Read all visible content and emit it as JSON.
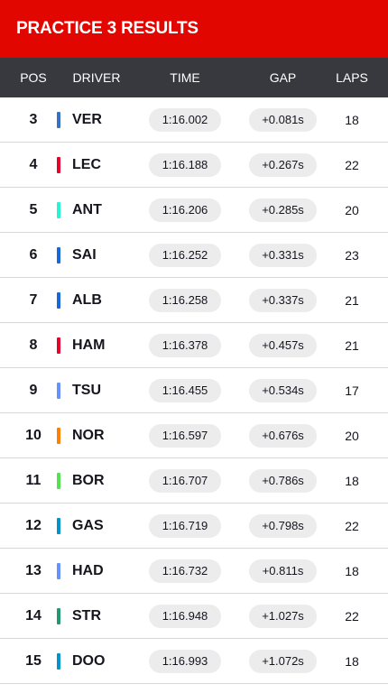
{
  "header": {
    "title": "PRACTICE 3 RESULTS"
  },
  "columns": {
    "pos": "POS",
    "driver": "DRIVER",
    "time": "TIME",
    "gap": "GAP",
    "laps": "LAPS"
  },
  "rows": [
    {
      "pos": "3",
      "driver": "VER",
      "time": "1:16.002",
      "gap": "+0.081s",
      "laps": "18",
      "team_color": "#3671c6"
    },
    {
      "pos": "4",
      "driver": "LEC",
      "time": "1:16.188",
      "gap": "+0.267s",
      "laps": "22",
      "team_color": "#e8002d"
    },
    {
      "pos": "5",
      "driver": "ANT",
      "time": "1:16.206",
      "gap": "+0.285s",
      "laps": "20",
      "team_color": "#27f4d2"
    },
    {
      "pos": "6",
      "driver": "SAI",
      "time": "1:16.252",
      "gap": "+0.331s",
      "laps": "23",
      "team_color": "#1868db"
    },
    {
      "pos": "7",
      "driver": "ALB",
      "time": "1:16.258",
      "gap": "+0.337s",
      "laps": "21",
      "team_color": "#1868db"
    },
    {
      "pos": "8",
      "driver": "HAM",
      "time": "1:16.378",
      "gap": "+0.457s",
      "laps": "21",
      "team_color": "#e8002d"
    },
    {
      "pos": "9",
      "driver": "TSU",
      "time": "1:16.455",
      "gap": "+0.534s",
      "laps": "17",
      "team_color": "#6692ff"
    },
    {
      "pos": "10",
      "driver": "NOR",
      "time": "1:16.597",
      "gap": "+0.676s",
      "laps": "20",
      "team_color": "#ff8000"
    },
    {
      "pos": "11",
      "driver": "BOR",
      "time": "1:16.707",
      "gap": "+0.786s",
      "laps": "18",
      "team_color": "#52e252"
    },
    {
      "pos": "12",
      "driver": "GAS",
      "time": "1:16.719",
      "gap": "+0.798s",
      "laps": "22",
      "team_color": "#0093cc"
    },
    {
      "pos": "13",
      "driver": "HAD",
      "time": "1:16.732",
      "gap": "+0.811s",
      "laps": "18",
      "team_color": "#6692ff"
    },
    {
      "pos": "14",
      "driver": "STR",
      "time": "1:16.948",
      "gap": "+1.027s",
      "laps": "22",
      "team_color": "#229971"
    },
    {
      "pos": "15",
      "driver": "DOO",
      "time": "1:16.993",
      "gap": "+1.072s",
      "laps": "18",
      "team_color": "#0093cc"
    }
  ],
  "colors": {
    "header_red": "#e10600",
    "column_header_bg": "#38383f",
    "pill_bg": "#ececec"
  }
}
